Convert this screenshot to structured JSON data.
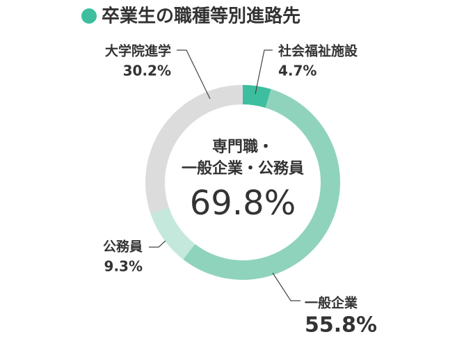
{
  "chart_data": {
    "type": "donut",
    "title": "卒業生の職種等別進路先",
    "categories": [
      "社会福祉施設",
      "一般企業",
      "公務員",
      "大学院進学"
    ],
    "values": [
      4.7,
      55.8,
      9.3,
      30.2
    ],
    "value_labels": [
      "4.7%",
      "55.8%",
      "9.3%",
      "30.2%"
    ],
    "colors": [
      "#3dbf9f",
      "#8fd3bd",
      "#c5e8dc",
      "#dcdcdc"
    ],
    "center_label": [
      "専門職・",
      "一般企業・公務員"
    ],
    "center_value_label": "69.8%"
  }
}
